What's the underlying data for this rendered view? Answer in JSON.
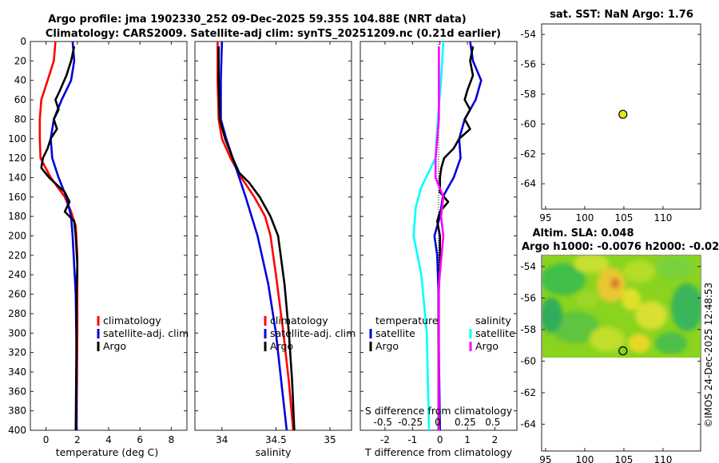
{
  "titles": {
    "line1": "Argo profile: jma 1902330_252 09-Dec-2025 59.35S 104.88E (NRT data)",
    "line2": "Climatology: CARS2009. Satellite-adj clim: synTS_20251209.nc (0.21d earlier)"
  },
  "watermark": "©IMOS 24-Dec-2025 12:48:53",
  "colors": {
    "climatology": "#ff0000",
    "satellite": "#0000dd",
    "argo": "#000000",
    "cyan": "#00ffff",
    "magenta": "#ff00ff",
    "point": "#e6e61a"
  },
  "chart_data": [
    {
      "type": "line",
      "name": "temperature-profile",
      "xlabel": "temperature (deg C)",
      "ylabel": "",
      "xlim": [
        -1,
        9
      ],
      "ylim": [
        400,
        0
      ],
      "xticks": [
        0,
        2,
        4,
        6,
        8
      ],
      "xtick_labels": [
        "0",
        "2",
        "4",
        "6",
        "8"
      ],
      "yticks": [
        0,
        20,
        40,
        60,
        80,
        100,
        120,
        140,
        160,
        180,
        200,
        220,
        240,
        260,
        280,
        300,
        320,
        340,
        360,
        380,
        400
      ],
      "series": [
        {
          "name": "climatology",
          "color": "#ff0000",
          "depth": [
            0,
            20,
            40,
            60,
            80,
            100,
            120,
            140,
            160,
            175,
            190,
            220,
            260,
            300,
            400
          ],
          "values": [
            0.6,
            0.5,
            0.1,
            -0.3,
            -0.4,
            -0.4,
            -0.35,
            0.3,
            1.2,
            1.6,
            1.9,
            2.0,
            2.0,
            2.0,
            1.95
          ]
        },
        {
          "name": "satellite-adj. clim",
          "color": "#0000dd",
          "depth": [
            0,
            20,
            40,
            60,
            80,
            100,
            120,
            140,
            160,
            180,
            200,
            260,
            320,
            400
          ],
          "values": [
            1.7,
            1.8,
            1.6,
            1.0,
            0.5,
            0.3,
            0.4,
            0.8,
            1.3,
            1.6,
            1.7,
            1.9,
            1.95,
            1.95
          ]
        },
        {
          "name": "Argo",
          "color": "#000000",
          "depth": [
            5,
            20,
            35,
            50,
            60,
            70,
            80,
            90,
            100,
            110,
            120,
            130,
            140,
            155,
            165,
            175,
            185,
            200,
            230,
            260,
            300,
            400
          ],
          "values": [
            1.8,
            1.6,
            1.3,
            0.9,
            0.6,
            0.8,
            0.5,
            0.7,
            0.3,
            0.1,
            -0.2,
            -0.3,
            0.2,
            1.2,
            1.5,
            1.2,
            1.8,
            1.9,
            2.0,
            1.95,
            1.95,
            1.9
          ]
        }
      ],
      "legend": [
        "climatology",
        "satellite-adj. clim",
        "Argo"
      ]
    },
    {
      "type": "line",
      "name": "salinity-profile",
      "xlabel": "salinity",
      "xlim": [
        33.75,
        35.2
      ],
      "ylim": [
        400,
        0
      ],
      "xticks": [
        34,
        34.5,
        35
      ],
      "xtick_labels": [
        "34",
        "34.5",
        "35"
      ],
      "series": [
        {
          "name": "climatology",
          "color": "#ff0000",
          "depth": [
            0,
            40,
            80,
            100,
            120,
            140,
            160,
            180,
            200,
            240,
            300,
            350,
            400
          ],
          "values": [
            33.96,
            33.96,
            33.97,
            34.0,
            34.08,
            34.18,
            34.3,
            34.4,
            34.45,
            34.5,
            34.57,
            34.62,
            34.66
          ]
        },
        {
          "name": "satellite-adj. clim",
          "color": "#0000dd",
          "depth": [
            0,
            40,
            80,
            100,
            120,
            140,
            160,
            200,
            250,
            300,
            350,
            400
          ],
          "values": [
            34.0,
            33.99,
            33.99,
            34.04,
            34.1,
            34.16,
            34.22,
            34.33,
            34.43,
            34.5,
            34.55,
            34.6
          ]
        },
        {
          "name": "Argo",
          "color": "#000000",
          "depth": [
            5,
            40,
            80,
            100,
            120,
            135,
            145,
            160,
            180,
            200,
            250,
            300,
            350,
            400
          ],
          "values": [
            33.97,
            33.97,
            33.98,
            34.03,
            34.1,
            34.16,
            34.25,
            34.35,
            34.45,
            34.52,
            34.58,
            34.62,
            34.65,
            34.67
          ]
        }
      ],
      "legend": [
        "climatology",
        "satellite-adj. clim",
        "Argo"
      ]
    },
    {
      "type": "line",
      "name": "difference-profile",
      "xlabel": "T difference from climatology",
      "xlabel_top": "S difference from climatology",
      "xlim": [
        -2.9,
        2.8
      ],
      "ylim": [
        400,
        0
      ],
      "xticks": [
        -2,
        -1,
        0,
        1,
        2
      ],
      "xtick_labels": [
        "-2",
        "-1",
        "0",
        "1",
        "2"
      ],
      "s_xticks": [
        -0.5,
        -0.25,
        0,
        0.25,
        0.5
      ],
      "s_xtick_labels": [
        "-0.5",
        "-0.25",
        "0",
        "0.25",
        "0.5"
      ],
      "series": [
        {
          "name": "T satellite",
          "color": "#0000dd",
          "depth": [
            0,
            20,
            40,
            60,
            80,
            100,
            120,
            140,
            160,
            180,
            200,
            220,
            260,
            300,
            400
          ],
          "values": [
            1.1,
            1.2,
            1.5,
            1.3,
            0.9,
            0.7,
            0.75,
            0.5,
            0.1,
            0.0,
            -0.2,
            -0.1,
            -0.05,
            -0.05,
            0.0
          ]
        },
        {
          "name": "T Argo",
          "color": "#000000",
          "depth": [
            5,
            20,
            35,
            50,
            60,
            70,
            80,
            90,
            100,
            110,
            120,
            130,
            140,
            155,
            165,
            175,
            185,
            200,
            230,
            260,
            300,
            400
          ],
          "values": [
            1.2,
            1.1,
            1.2,
            1.0,
            0.9,
            1.1,
            0.9,
            1.1,
            0.7,
            0.5,
            0.15,
            0.05,
            0.0,
            0.0,
            0.3,
            0.0,
            -0.1,
            0.0,
            0.0,
            -0.05,
            -0.05,
            -0.05
          ]
        },
        {
          "name": "S satellite",
          "color": "#00ffff",
          "depth": [
            0,
            40,
            80,
            120,
            150,
            170,
            200,
            240,
            300,
            400
          ],
          "values": [
            0.05,
            0.03,
            0.0,
            -0.02,
            -0.15,
            -0.2,
            -0.22,
            -0.15,
            -0.1,
            -0.08
          ]
        },
        {
          "name": "S Argo",
          "color": "#ff00ff",
          "depth": [
            5,
            40,
            80,
            120,
            140,
            160,
            180,
            200,
            250,
            300,
            400
          ],
          "values": [
            0.01,
            0.01,
            0.01,
            -0.02,
            -0.02,
            0.05,
            0.03,
            0.05,
            0.01,
            0.01,
            0.01
          ]
        }
      ],
      "legend_temperature": {
        "title": "temperature",
        "items": [
          "satellite",
          "Argo"
        ]
      },
      "legend_salinity": {
        "title": "salinity",
        "items": [
          "satellite",
          "Argo"
        ]
      }
    },
    {
      "type": "scatter",
      "name": "sst-map",
      "title": "sat. SST: NaN Argo: 1.76",
      "xlim": [
        94.5,
        114.8
      ],
      "ylim": [
        -65.7,
        -53.3
      ],
      "xticks": [
        95,
        100,
        105,
        110
      ],
      "yticks": [
        -54,
        -56,
        -58,
        -60,
        -62,
        -64
      ],
      "point": {
        "lon": 104.88,
        "lat": -59.35
      }
    },
    {
      "type": "heatmap",
      "name": "sla-map",
      "title": "Altim. SLA: 0.048",
      "subtitle": "Argo h1000: -0.0076 h2000: -0.02",
      "xlim": [
        94.5,
        114.8
      ],
      "ylim": [
        -65.7,
        -53.3
      ],
      "data_extent_lat": [
        -60,
        -53.3
      ],
      "xticks": [
        95,
        100,
        105,
        110
      ],
      "yticks": [
        -54,
        -56,
        -58,
        -60,
        -62,
        -64
      ],
      "point": {
        "lon": 104.88,
        "lat": -59.35
      }
    }
  ]
}
